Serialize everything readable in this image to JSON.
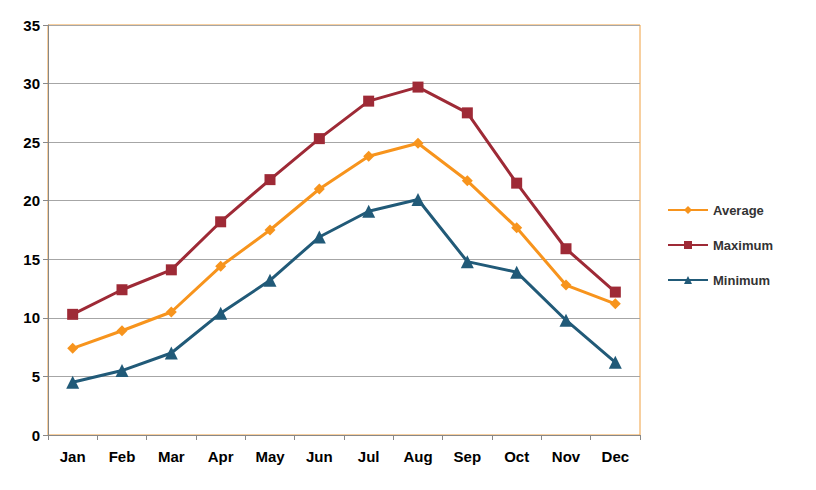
{
  "chart_data": {
    "type": "line",
    "categories": [
      "Jan",
      "Feb",
      "Mar",
      "Apr",
      "May",
      "Jun",
      "Jul",
      "Aug",
      "Sep",
      "Oct",
      "Nov",
      "Dec"
    ],
    "series": [
      {
        "name": "Average",
        "color": "#f7941d",
        "marker": "diamond",
        "values": [
          7.4,
          8.9,
          10.5,
          14.4,
          17.5,
          21.0,
          23.8,
          24.9,
          21.7,
          17.7,
          12.8,
          11.2
        ]
      },
      {
        "name": "Maximum",
        "color": "#9e2a36",
        "marker": "square",
        "values": [
          10.3,
          12.4,
          14.1,
          18.2,
          21.8,
          25.3,
          28.5,
          29.7,
          27.5,
          21.5,
          15.9,
          12.2
        ]
      },
      {
        "name": "Minimum",
        "color": "#215a78",
        "marker": "triangle",
        "values": [
          4.5,
          5.5,
          7.0,
          10.4,
          13.2,
          16.9,
          19.1,
          20.1,
          14.8,
          13.9,
          9.8,
          6.2
        ]
      }
    ],
    "ylim": [
      0,
      35
    ],
    "yticks": [
      0,
      5,
      10,
      15,
      20,
      25,
      30,
      35
    ],
    "grid": true,
    "legend": "right"
  }
}
